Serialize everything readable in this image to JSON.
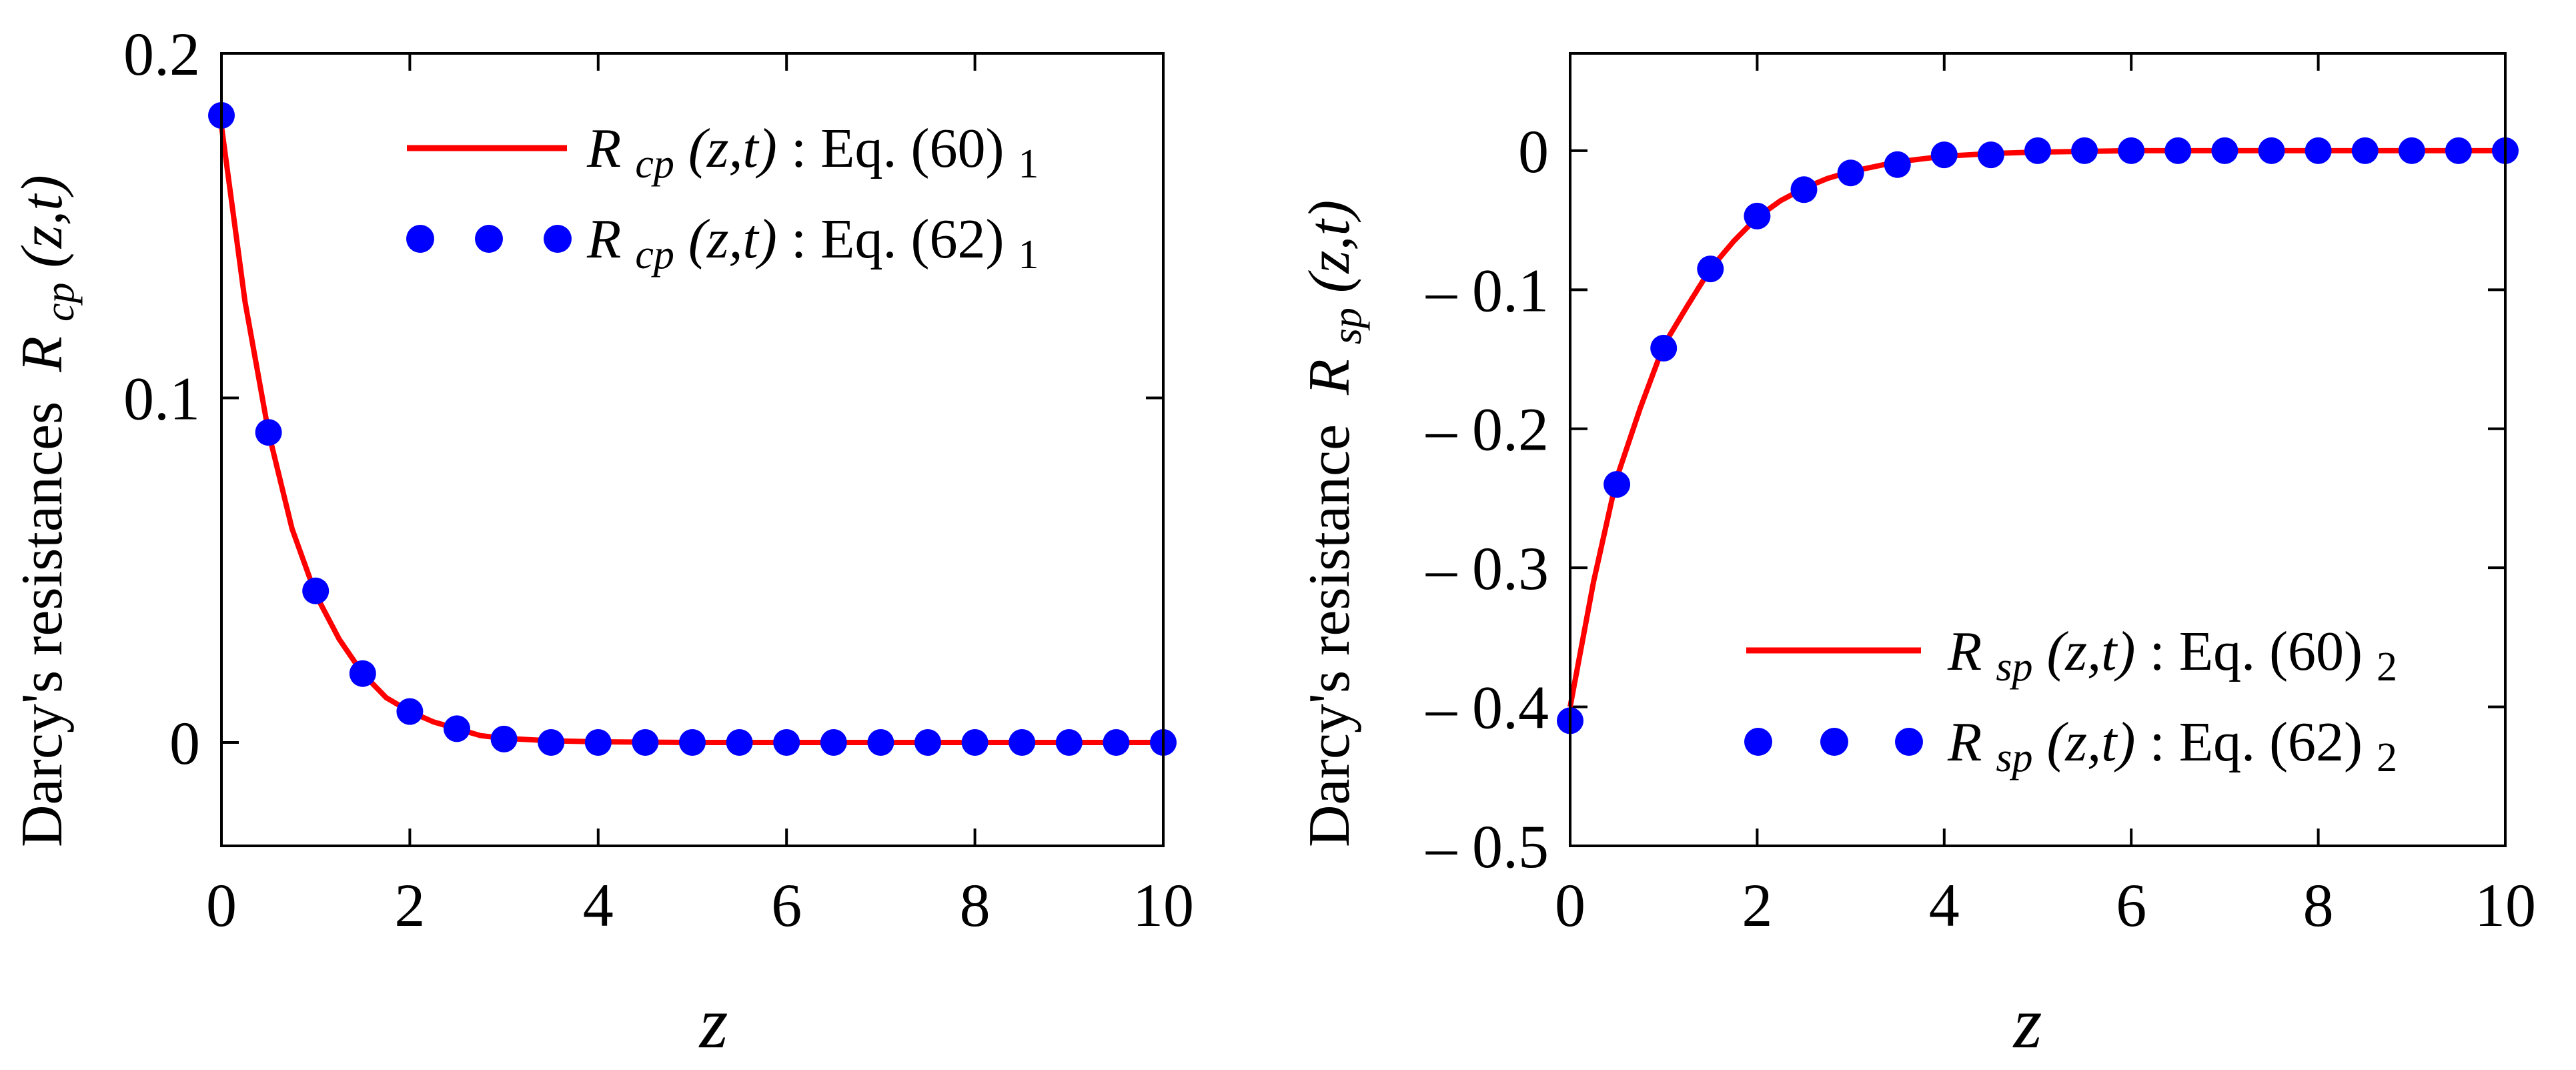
{
  "chart_data": [
    {
      "type": "line",
      "title": "",
      "xlabel": "z",
      "ylabel": "Darcy's resistances",
      "ylabel_symbol": "R",
      "ylabel_symbol_sub": "cp",
      "ylabel_args": "(z,t)",
      "xlim": [
        0,
        10
      ],
      "ylim": [
        -0.03,
        0.2
      ],
      "xticks": [
        0,
        2,
        4,
        6,
        8,
        10
      ],
      "xtick_labels": [
        "0",
        "2",
        "4",
        "6",
        "8",
        "10"
      ],
      "yticks": [
        0,
        0.1,
        0.2
      ],
      "ytick_labels": [
        "0",
        "0.1",
        "0.2"
      ],
      "legend_position": "top-right",
      "series": [
        {
          "name": "Rcp(z,t): Eq. (60)1",
          "symbol": "R",
          "symbol_sub": "cp",
          "args": "(z,t)",
          "eq": ": Eq. (60)",
          "eq_sub": "1",
          "style": "line",
          "color": "#ff0000",
          "x": [
            0,
            0.25,
            0.5,
            0.75,
            1,
            1.25,
            1.5,
            1.75,
            2,
            2.25,
            2.5,
            2.75,
            3,
            3.5,
            4,
            5,
            6,
            7,
            8,
            9,
            10
          ],
          "y": [
            0.179,
            0.128,
            0.09,
            0.062,
            0.043,
            0.03,
            0.02,
            0.013,
            0.009,
            0.006,
            0.004,
            0.002,
            0.0012,
            0.0005,
            0.0002,
            0,
            0,
            0,
            0,
            0,
            0
          ]
        },
        {
          "name": "Rcp(z,t): Eq. (62)1",
          "symbol": "R",
          "symbol_sub": "cp",
          "args": "(z,t)",
          "eq": ": Eq. (62)",
          "eq_sub": "1",
          "style": "markers",
          "color": "#0000ff",
          "x": [
            0,
            0.5,
            1,
            1.5,
            2,
            2.5,
            3,
            3.5,
            4,
            4.5,
            5,
            5.5,
            6,
            6.5,
            7,
            7.5,
            8,
            8.5,
            9,
            9.5,
            10
          ],
          "y": [
            0.182,
            0.09,
            0.044,
            0.02,
            0.009,
            0.004,
            0.001,
            0,
            0,
            0,
            0,
            0,
            0,
            0,
            0,
            0,
            0,
            0,
            0,
            0,
            0
          ]
        }
      ]
    },
    {
      "type": "line",
      "title": "",
      "xlabel": "z",
      "ylabel": "Darcy's resistance",
      "ylabel_symbol": "R",
      "ylabel_symbol_sub": "sp",
      "ylabel_args": "(z,t)",
      "xlim": [
        0,
        10
      ],
      "ylim": [
        -0.5,
        0.07
      ],
      "xticks": [
        0,
        2,
        4,
        6,
        8,
        10
      ],
      "xtick_labels": [
        "0",
        "2",
        "4",
        "6",
        "8",
        "10"
      ],
      "yticks": [
        0,
        -0.1,
        -0.2,
        -0.3,
        -0.4,
        -0.5
      ],
      "ytick_labels": [
        "0",
        "– 0.1",
        "– 0.2",
        "– 0.3",
        "– 0.4",
        "– 0.5"
      ],
      "legend_position": "bottom-right",
      "series": [
        {
          "name": "Rsp(z,t): Eq. (60)2",
          "symbol": "R",
          "symbol_sub": "sp",
          "args": "(z,t)",
          "eq": ": Eq. (60)",
          "eq_sub": "2",
          "style": "line",
          "color": "#ff0000",
          "x": [
            0,
            0.25,
            0.5,
            0.75,
            1,
            1.25,
            1.5,
            1.75,
            2,
            2.25,
            2.5,
            2.75,
            3,
            3.5,
            4,
            4.5,
            5,
            6,
            7,
            8,
            9,
            10
          ],
          "y": [
            -0.4,
            -0.31,
            -0.235,
            -0.185,
            -0.14,
            -0.112,
            -0.085,
            -0.065,
            -0.048,
            -0.036,
            -0.027,
            -0.02,
            -0.015,
            -0.008,
            -0.004,
            -0.002,
            -0.001,
            0,
            0,
            0,
            0,
            0
          ]
        },
        {
          "name": "Rsp(z,t): Eq. (62)2",
          "symbol": "R",
          "symbol_sub": "sp",
          "args": "(z,t)",
          "eq": ": Eq. (62)",
          "eq_sub": "2",
          "style": "markers",
          "color": "#0000ff",
          "x": [
            0,
            0.5,
            1,
            1.5,
            2,
            2.5,
            3,
            3.5,
            4,
            4.5,
            5,
            5.5,
            6,
            6.5,
            7,
            7.5,
            8,
            8.5,
            9,
            9.5,
            10
          ],
          "y": [
            -0.41,
            -0.24,
            -0.142,
            -0.085,
            -0.047,
            -0.028,
            -0.016,
            -0.01,
            -0.003,
            -0.003,
            0,
            0,
            0,
            0,
            0,
            0,
            0,
            0,
            0,
            0,
            0
          ]
        }
      ]
    }
  ]
}
